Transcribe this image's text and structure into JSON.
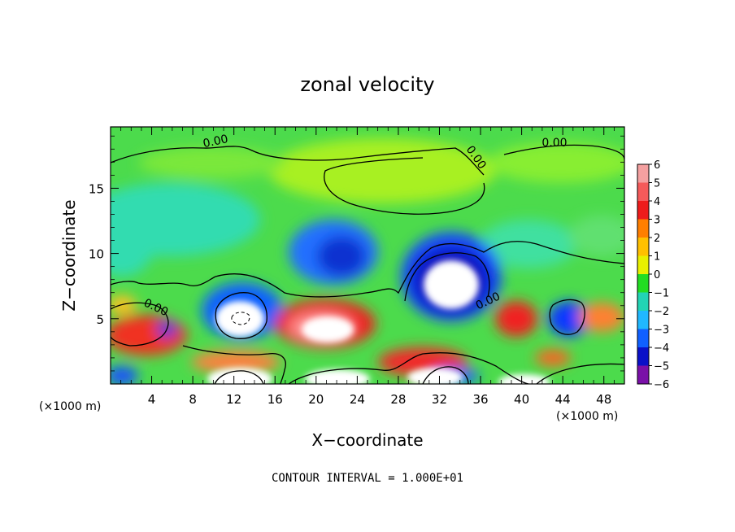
{
  "chart_data": {
    "type": "heatmap",
    "title": "zonal velocity",
    "xlabel": "X−coordinate",
    "ylabel": "Z−coordinate",
    "x_unit": "(×1000 m)",
    "y_unit": "(×1000 m)",
    "xlim": [
      0,
      50
    ],
    "ylim": [
      0,
      19.7
    ],
    "x_ticks": [
      "4",
      "8",
      "12",
      "16",
      "20",
      "24",
      "28",
      "32",
      "36",
      "40",
      "44",
      "48"
    ],
    "y_ticks": [
      "5",
      "10",
      "15"
    ],
    "colorbar": {
      "levels": [
        "6",
        "5",
        "4",
        "3",
        "2",
        "1",
        "0",
        "−1",
        "−2",
        "−3",
        "−4",
        "−5",
        "−6"
      ],
      "colors": [
        "#f4a0a0",
        "#f55a5a",
        "#ee1c1c",
        "#ff7f00",
        "#ffc000",
        "#e8f000",
        "#88ee20",
        "#22dd22",
        "#22d4b4",
        "#20b8ff",
        "#1060ff",
        "#0a10c8",
        "#7a10a8"
      ]
    },
    "contour_labels": [
      "0.00",
      "0.00",
      "0.00",
      "0.00",
      "0.00"
    ],
    "footer": "CONTOUR INTERVAL =  1.000E+01"
  }
}
